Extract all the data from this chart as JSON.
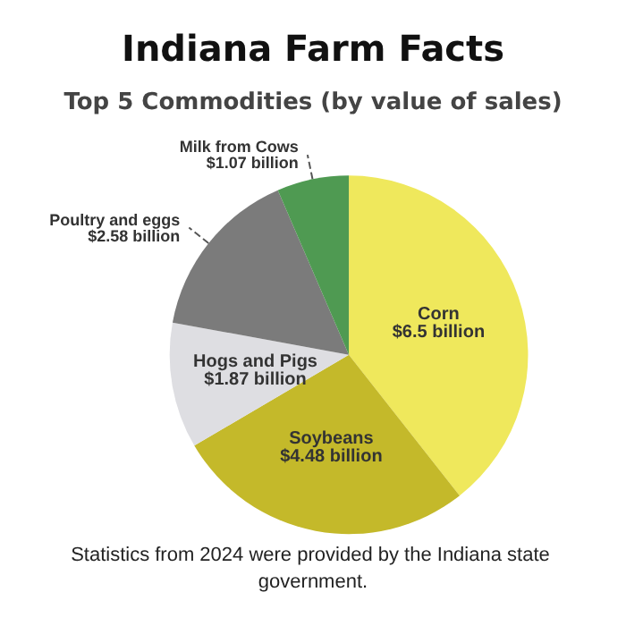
{
  "chart_data": {
    "type": "pie",
    "title": "Indiana Farm Facts",
    "subtitle": "Top 5 Commodities (by value of sales)",
    "categories": [
      "Corn",
      "Soybeans",
      "Hogs and Pigs",
      "Poultry and eggs",
      "Milk from Cows"
    ],
    "values": [
      6.5,
      4.48,
      1.87,
      2.58,
      1.07
    ],
    "value_labels": [
      "$6.5 billion",
      "$4.48 billion",
      "$1.87 billion",
      "$2.58 billion",
      "$1.07 billion"
    ],
    "colors": [
      "#efe85c",
      "#c4b92a",
      "#dedee2",
      "#7b7b7b",
      "#4f9a52"
    ],
    "legend": false,
    "annotations": [
      "Statistics from 2024 were provided by the Indiana state government."
    ]
  }
}
